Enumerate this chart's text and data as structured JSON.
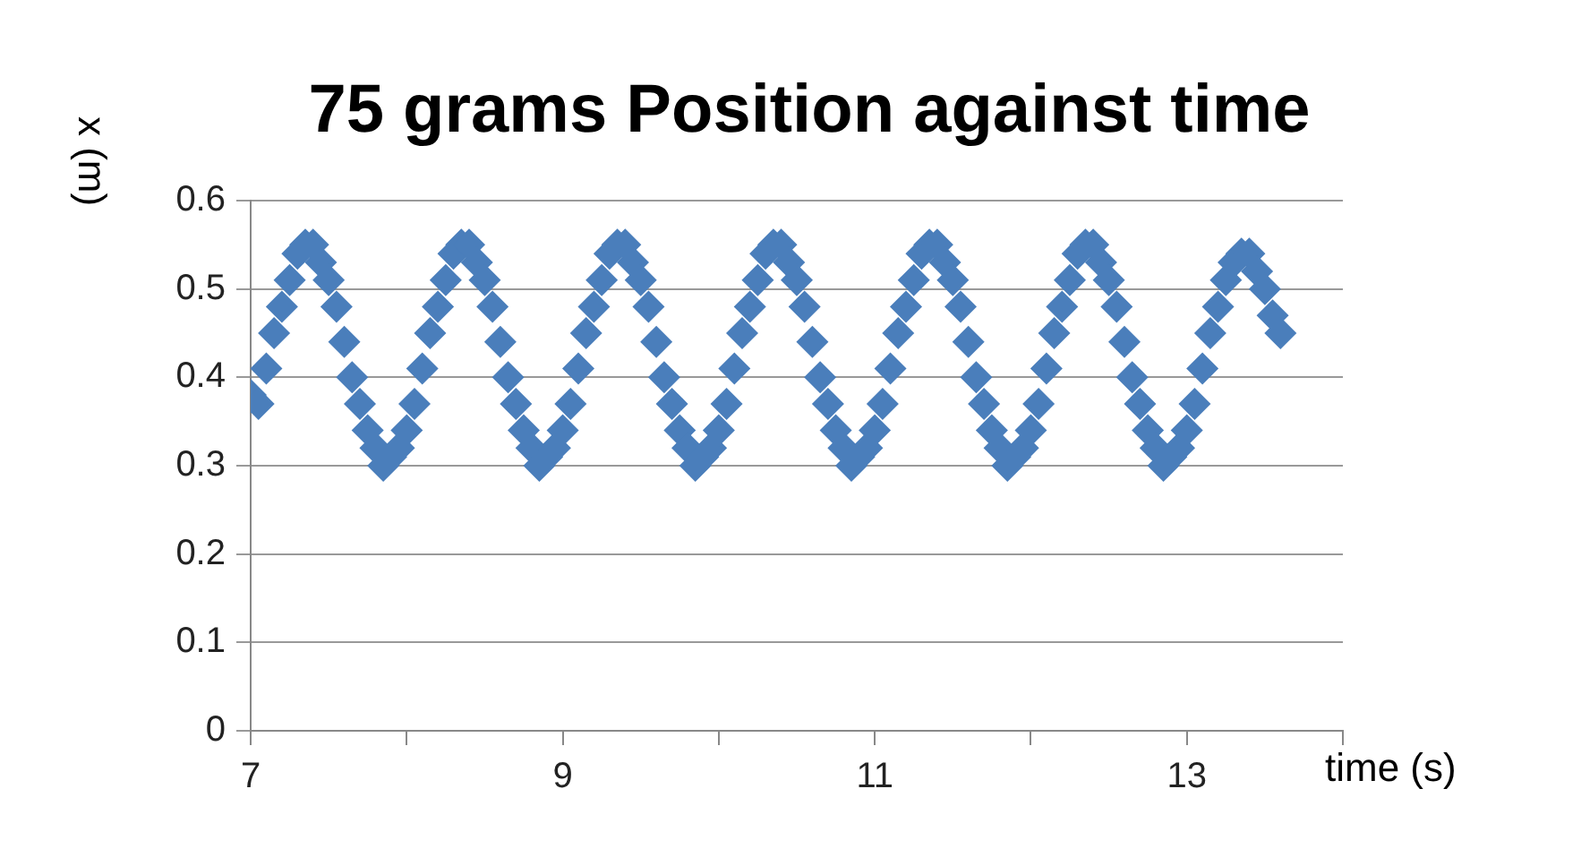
{
  "chart_data": {
    "type": "scatter",
    "title": "75 grams Position against time",
    "xlabel": "time (s)",
    "ylabel": "x (m)",
    "xlim": [
      7,
      14
    ],
    "xticks": [
      7,
      {
        "value": 8,
        "label": null
      },
      9,
      {
        "value": 10,
        "label": null
      },
      11,
      {
        "value": 12,
        "label": null
      },
      13,
      {
        "value": 14,
        "label": null
      }
    ],
    "ylim": [
      0,
      0.6
    ],
    "yticks": [
      0,
      0.1,
      0.2,
      0.3,
      0.4,
      0.5,
      0.6
    ],
    "grid": "y",
    "legend": false,
    "marker": "diamond",
    "series": [
      {
        "color": "#4a7ebb",
        "x": [
          7.0,
          7.05,
          7.1,
          7.15,
          7.2,
          7.25,
          7.3,
          7.35,
          7.4,
          7.45,
          7.5,
          7.55,
          7.6,
          7.65,
          7.7,
          7.75,
          7.8,
          7.85,
          7.9,
          7.95,
          8.0,
          8.05,
          8.1,
          8.15,
          8.2,
          8.25,
          8.3,
          8.35,
          8.4,
          8.45,
          8.5,
          8.55,
          8.6,
          8.65,
          8.7,
          8.75,
          8.8,
          8.85,
          8.9,
          8.95,
          9.0,
          9.05,
          9.1,
          9.15,
          9.2,
          9.25,
          9.3,
          9.35,
          9.4,
          9.45,
          9.5,
          9.55,
          9.6,
          9.65,
          9.7,
          9.75,
          9.8,
          9.85,
          9.9,
          9.95,
          10.0,
          10.05,
          10.1,
          10.15,
          10.2,
          10.25,
          10.3,
          10.35,
          10.4,
          10.45,
          10.5,
          10.55,
          10.6,
          10.65,
          10.7,
          10.75,
          10.8,
          10.85,
          10.9,
          10.95,
          11.0,
          11.05,
          11.1,
          11.15,
          11.2,
          11.25,
          11.3,
          11.35,
          11.4,
          11.45,
          11.5,
          11.55,
          11.6,
          11.65,
          11.7,
          11.75,
          11.8,
          11.85,
          11.9,
          11.95,
          12.0,
          12.05,
          12.1,
          12.15,
          12.2,
          12.25,
          12.3,
          12.35,
          12.4,
          12.45,
          12.5,
          12.55,
          12.6,
          12.65,
          12.7,
          12.75,
          12.8,
          12.85,
          12.9,
          12.95,
          13.0,
          13.05,
          13.1,
          13.15,
          13.2,
          13.25,
          13.3,
          13.35,
          13.4,
          13.45,
          13.5,
          13.55,
          13.6
        ],
        "values": [
          0.38,
          0.37,
          0.41,
          0.45,
          0.48,
          0.51,
          0.54,
          0.55,
          0.55,
          0.53,
          0.51,
          0.48,
          0.44,
          0.4,
          0.37,
          0.34,
          0.32,
          0.3,
          0.31,
          0.32,
          0.34,
          0.37,
          0.41,
          0.45,
          0.48,
          0.51,
          0.54,
          0.55,
          0.55,
          0.53,
          0.51,
          0.48,
          0.44,
          0.4,
          0.37,
          0.34,
          0.32,
          0.3,
          0.31,
          0.32,
          0.34,
          0.37,
          0.41,
          0.45,
          0.48,
          0.51,
          0.54,
          0.55,
          0.55,
          0.53,
          0.51,
          0.48,
          0.44,
          0.4,
          0.37,
          0.34,
          0.32,
          0.3,
          0.31,
          0.32,
          0.34,
          0.37,
          0.41,
          0.45,
          0.48,
          0.51,
          0.54,
          0.55,
          0.55,
          0.53,
          0.51,
          0.48,
          0.44,
          0.4,
          0.37,
          0.34,
          0.32,
          0.3,
          0.31,
          0.32,
          0.34,
          0.37,
          0.41,
          0.45,
          0.48,
          0.51,
          0.54,
          0.55,
          0.55,
          0.53,
          0.51,
          0.48,
          0.44,
          0.4,
          0.37,
          0.34,
          0.32,
          0.3,
          0.31,
          0.32,
          0.34,
          0.37,
          0.41,
          0.45,
          0.48,
          0.51,
          0.54,
          0.55,
          0.55,
          0.53,
          0.51,
          0.48,
          0.44,
          0.4,
          0.37,
          0.34,
          0.32,
          0.3,
          0.31,
          0.32,
          0.34,
          0.37,
          0.41,
          0.45,
          0.48,
          0.51,
          0.53,
          0.54,
          0.54,
          0.52,
          0.5,
          0.47,
          0.45
        ]
      }
    ]
  }
}
